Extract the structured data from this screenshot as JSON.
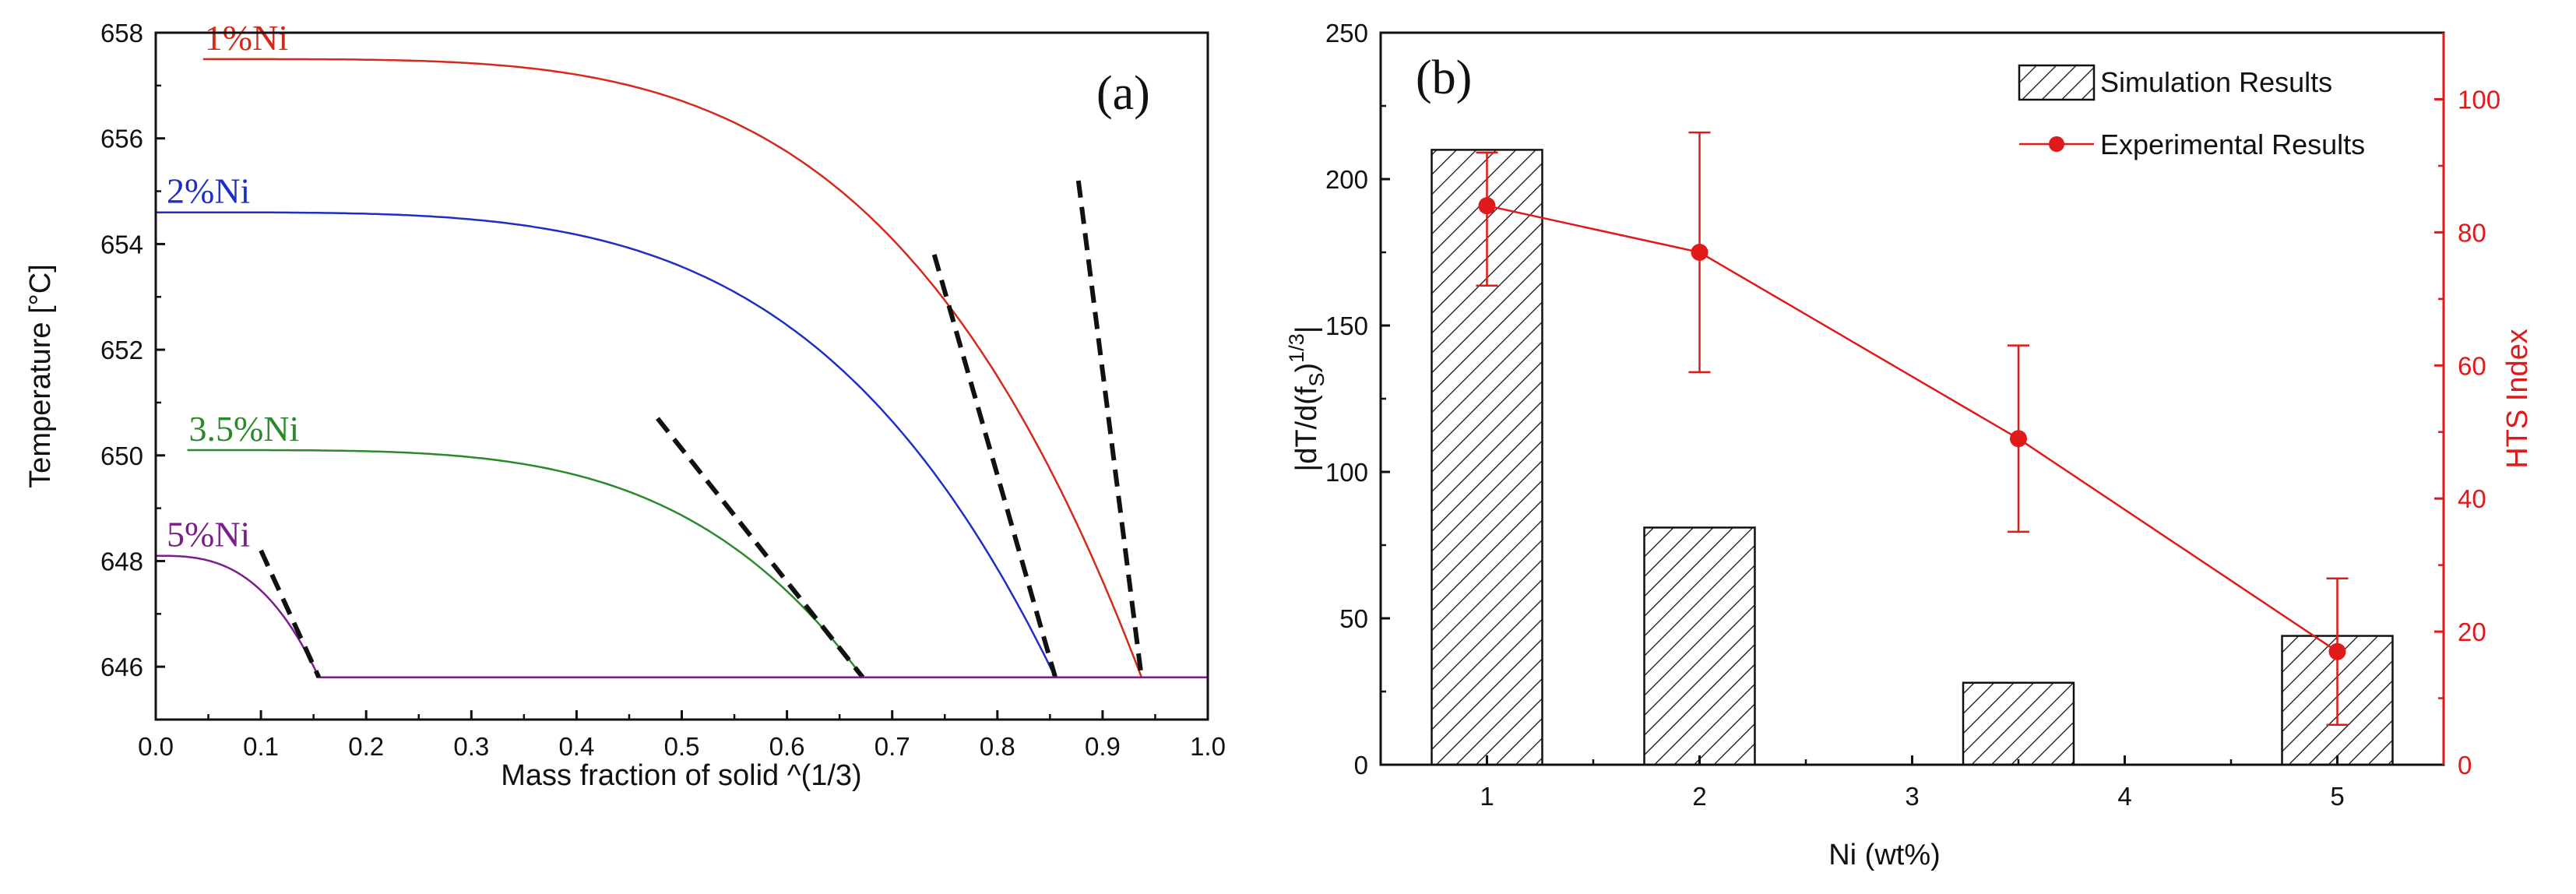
{
  "chart_data": [
    {
      "panel_label": "(a)",
      "type": "line",
      "xlabel": "Mass fraction of solid ^(1/3)",
      "ylabel": "Temperature [°C]",
      "xlim": [
        0.0,
        1.0
      ],
      "ylim": [
        645,
        658
      ],
      "xticks": [
        "0.0",
        "0.1",
        "0.2",
        "0.3",
        "0.4",
        "0.5",
        "0.6",
        "0.7",
        "0.8",
        "0.9",
        "1.0"
      ],
      "yticks": [
        "646",
        "648",
        "650",
        "652",
        "654",
        "656",
        "658"
      ],
      "eutectic_temperature": 645.8,
      "series": [
        {
          "name": "1%Ni",
          "color": "#d42a1c",
          "x_start": 0.045,
          "x_end": 0.937,
          "t_liquidus": 657.5,
          "k": 0.25,
          "tangent": {
            "x": [
              0.877,
              0.937
            ],
            "y": [
              655.2,
              645.8
            ]
          }
        },
        {
          "name": "2%Ni",
          "color": "#1f2fc4",
          "x_start": 0.0,
          "x_end": 0.855,
          "t_liquidus": 654.6,
          "k": 0.25,
          "tangent": {
            "x": [
              0.74,
              0.855
            ],
            "y": [
              653.8,
              645.8
            ]
          }
        },
        {
          "name": "3.5%Ni",
          "color": "#2a8a2a",
          "x_start": 0.03,
          "x_end": 0.672,
          "t_liquidus": 650.1,
          "k": 0.25,
          "tangent": {
            "x": [
              0.477,
              0.672
            ],
            "y": [
              650.7,
              645.8
            ]
          }
        },
        {
          "name": "5%Ni",
          "color": "#7a1f8a",
          "x_start": 0.0,
          "x_end": 0.155,
          "t_liquidus": 648.1,
          "k": 0.35,
          "tangent": {
            "x": [
              0.1,
              0.155
            ],
            "y": [
              648.2,
              645.8
            ]
          }
        }
      ]
    },
    {
      "panel_label": "(b)",
      "type": "bar",
      "xlabel": "Ni (wt%)",
      "ylabel": "|dT/d(fS)^1/3|",
      "ylabel_parts": {
        "main": "|dT/d(f",
        "sub": "S",
        "close": ")",
        "sup": "1/3",
        "end": "|"
      },
      "y2label": "HTS Index",
      "xlim": [
        0.5,
        5.5
      ],
      "ylim": [
        0,
        250
      ],
      "y2lim": [
        0,
        110
      ],
      "xticks": [
        "1",
        "2",
        "3",
        "4",
        "5"
      ],
      "yticks": [
        "0",
        "50",
        "100",
        "150",
        "200",
        "250"
      ],
      "y2ticks": [
        "0",
        "20",
        "40",
        "60",
        "80",
        "100"
      ],
      "bars": {
        "name": "Simulation Results",
        "x": [
          1,
          2,
          3.5,
          5
        ],
        "values": [
          210,
          81,
          28,
          44
        ]
      },
      "line": {
        "name": "Experimental Results",
        "color": "#e01a1a",
        "x": [
          1,
          2,
          3.5,
          5
        ],
        "values": [
          84,
          77,
          49,
          17
        ],
        "err_low": [
          72,
          59,
          35,
          6
        ],
        "err_high": [
          92,
          95,
          63,
          28
        ]
      }
    }
  ]
}
